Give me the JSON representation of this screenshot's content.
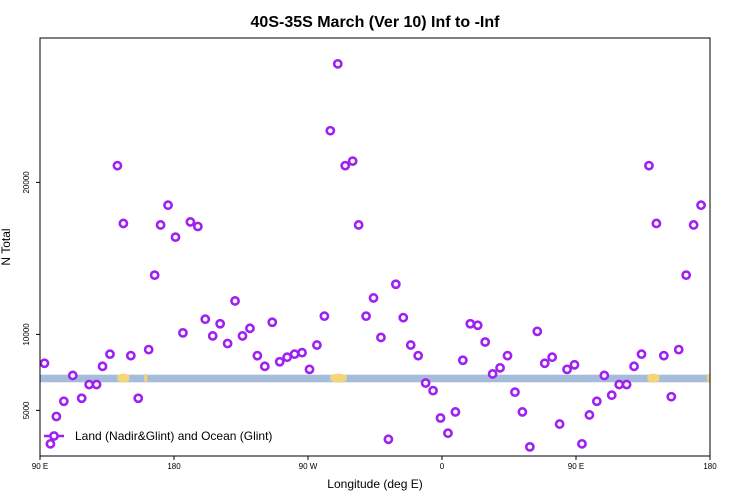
{
  "chart_data": {
    "type": "scatter",
    "title": "40S-35S March (Ver 10)   Inf to -Inf",
    "xlabel": "Longitude (deg E)",
    "ylabel": "N Total",
    "x_axis": {
      "min_display": 90,
      "direction": "eastward, wrapping through 180 to 90 E of next cycle",
      "ticks": [
        {
          "lon": 90,
          "label": "90 E"
        },
        {
          "lon": 180,
          "label": "180"
        },
        {
          "lon": 270,
          "label": "90 W"
        },
        {
          "lon": 360,
          "label": "0"
        },
        {
          "lon": 450,
          "label": "90 E"
        },
        {
          "lon": 540,
          "label": "180"
        }
      ],
      "range_unwrapped": [
        90,
        540
      ]
    },
    "y_axis": {
      "ticks": [
        5000,
        10000,
        20000
      ],
      "range": [
        2000,
        29500
      ]
    },
    "colors": {
      "marker": "#a020f0",
      "band": "#a5bddb",
      "land": "#f5d57a"
    },
    "band": {
      "y_low": 6850,
      "y_high": 7350
    },
    "legend": {
      "label": "Land (Nadir&Glint) and Ocean (Glint)",
      "placement": "bottom-left"
    },
    "series": [
      {
        "name": "Land (Nadir&Glint) and Ocean (Glint)",
        "points": [
          [
            93,
            8100
          ],
          [
            97,
            2800
          ],
          [
            101,
            4600
          ],
          [
            106,
            5600
          ],
          [
            112,
            7300
          ],
          [
            118,
            5800
          ],
          [
            123,
            6700
          ],
          [
            128,
            6700
          ],
          [
            132,
            7900
          ],
          [
            137,
            8700
          ],
          [
            142,
            21100
          ],
          [
            146,
            17300
          ],
          [
            151,
            8600
          ],
          [
            156,
            5800
          ],
          [
            163,
            9000
          ],
          [
            167,
            13900
          ],
          [
            171,
            17200
          ],
          [
            176,
            18500
          ],
          [
            181,
            16400
          ],
          [
            186,
            10100
          ],
          [
            191,
            17400
          ],
          [
            196,
            17100
          ],
          [
            201,
            11000
          ],
          [
            206,
            9900
          ],
          [
            211,
            10700
          ],
          [
            216,
            9400
          ],
          [
            221,
            12200
          ],
          [
            226,
            9900
          ],
          [
            231,
            10400
          ],
          [
            236,
            8600
          ],
          [
            241,
            7900
          ],
          [
            246,
            10800
          ],
          [
            251,
            8200
          ],
          [
            256,
            8500
          ],
          [
            261,
            8700
          ],
          [
            266,
            8800
          ],
          [
            271,
            7700
          ],
          [
            276,
            9300
          ],
          [
            281,
            11200
          ],
          [
            285,
            23400
          ],
          [
            290,
            27800
          ],
          [
            295,
            21100
          ],
          [
            300,
            21400
          ],
          [
            304,
            17200
          ],
          [
            309,
            11200
          ],
          [
            314,
            12400
          ],
          [
            319,
            9800
          ],
          [
            324,
            3100
          ],
          [
            329,
            13300
          ],
          [
            334,
            11100
          ],
          [
            339,
            9300
          ],
          [
            344,
            8600
          ],
          [
            349,
            6800
          ],
          [
            354,
            6300
          ],
          [
            359,
            4500
          ],
          [
            364,
            3500
          ],
          [
            369,
            4900
          ],
          [
            374,
            8300
          ],
          [
            379,
            10700
          ],
          [
            384,
            10600
          ],
          [
            389,
            9500
          ],
          [
            394,
            7400
          ],
          [
            399,
            7800
          ],
          [
            404,
            8600
          ],
          [
            409,
            6200
          ],
          [
            414,
            4900
          ],
          [
            419,
            2600
          ],
          [
            424,
            10200
          ],
          [
            429,
            8100
          ],
          [
            434,
            8500
          ],
          [
            439,
            4100
          ],
          [
            444,
            7700
          ],
          [
            449,
            8000
          ],
          [
            454,
            2800
          ],
          [
            459,
            4700
          ],
          [
            464,
            5600
          ],
          [
            469,
            7300
          ],
          [
            474,
            6000
          ],
          [
            479,
            6700
          ],
          [
            484,
            6700
          ],
          [
            489,
            7900
          ],
          [
            494,
            8700
          ],
          [
            499,
            21100
          ],
          [
            504,
            17300
          ],
          [
            509,
            8600
          ],
          [
            514,
            5900
          ],
          [
            519,
            9000
          ],
          [
            524,
            13900
          ],
          [
            529,
            17200
          ],
          [
            534,
            18500
          ]
        ]
      }
    ]
  }
}
